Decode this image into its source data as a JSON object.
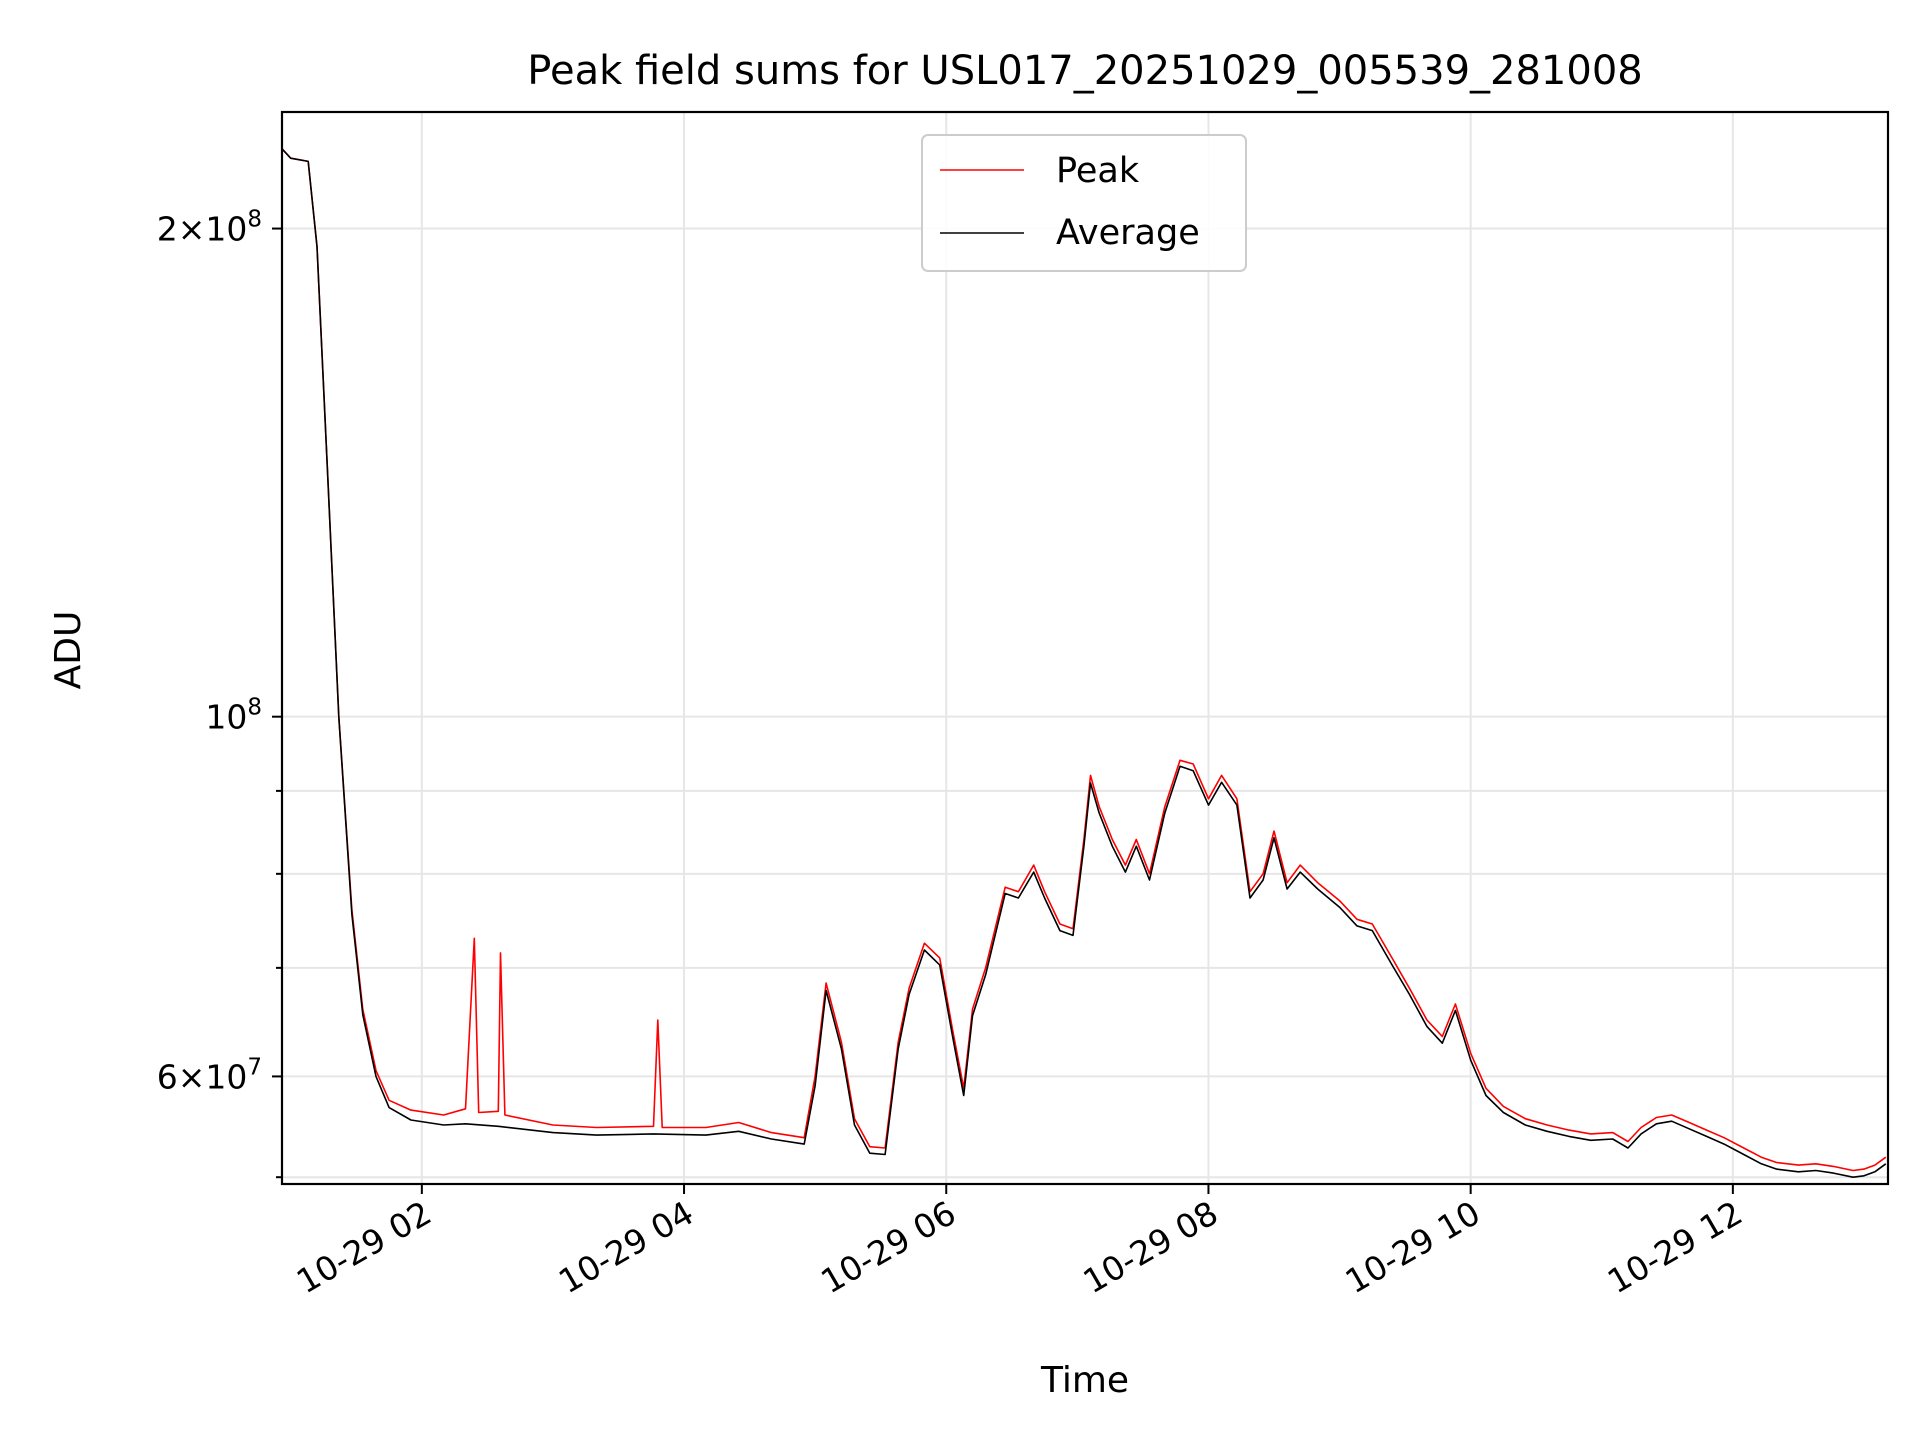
{
  "chart_data": {
    "type": "line",
    "title": "Peak field sums for USL017_20251029_005539_281008",
    "xlabel": "Time",
    "ylabel": "ADU",
    "xlim": [
      "2025-10-29 00:56",
      "2025-10-29 13:11"
    ],
    "ylim": [
      51500000,
      236000000
    ],
    "yscale": "log",
    "grid": true,
    "legend_position": "upper center",
    "x_ticks": [
      {
        "x": "2025-10-29 02:00",
        "label": "10-29 02"
      },
      {
        "x": "2025-10-29 04:00",
        "label": "10-29 04"
      },
      {
        "x": "2025-10-29 06:00",
        "label": "10-29 06"
      },
      {
        "x": "2025-10-29 08:00",
        "label": "10-29 08"
      },
      {
        "x": "2025-10-29 10:00",
        "label": "10-29 10"
      },
      {
        "x": "2025-10-29 12:00",
        "label": "10-29 12"
      }
    ],
    "y_major_ticks": [
      {
        "y": 60000000,
        "mant": "6",
        "exp": "7"
      },
      {
        "y": 100000000,
        "mant": "",
        "exp": "8"
      },
      {
        "y": 200000000,
        "mant": "2",
        "exp": "8"
      }
    ],
    "y_minor_ticks": [
      52000000,
      70000000,
      80000000,
      90000000
    ],
    "series": [
      {
        "name": "Peak",
        "color": "#ff0000",
        "points": [
          [
            "2025-10-29 00:56",
            224000000
          ],
          [
            "2025-10-29 01:00",
            221000000
          ],
          [
            "2025-10-29 01:08",
            220000000
          ],
          [
            "2025-10-29 01:12",
            195000000
          ],
          [
            "2025-10-29 01:17",
            140000000
          ],
          [
            "2025-10-29 01:22",
            100000000
          ],
          [
            "2025-10-29 01:28",
            76000000
          ],
          [
            "2025-10-29 01:33",
            66000000
          ],
          [
            "2025-10-29 01:39",
            60500000
          ],
          [
            "2025-10-29 01:45",
            58000000
          ],
          [
            "2025-10-29 01:55",
            57200000
          ],
          [
            "2025-10-29 02:10",
            56800000
          ],
          [
            "2025-10-29 02:20",
            57300000
          ],
          [
            "2025-10-29 02:24",
            73000000
          ],
          [
            "2025-10-29 02:26",
            57000000
          ],
          [
            "2025-10-29 02:35",
            57100000
          ],
          [
            "2025-10-29 02:36",
            71500000
          ],
          [
            "2025-10-29 02:38",
            56800000
          ],
          [
            "2025-10-29 03:00",
            56000000
          ],
          [
            "2025-10-29 03:20",
            55800000
          ],
          [
            "2025-10-29 03:46",
            55900000
          ],
          [
            "2025-10-29 03:48",
            65000000
          ],
          [
            "2025-10-29 03:50",
            55800000
          ],
          [
            "2025-10-29 04:10",
            55800000
          ],
          [
            "2025-10-29 04:25",
            56200000
          ],
          [
            "2025-10-29 04:40",
            55400000
          ],
          [
            "2025-10-29 04:55",
            55000000
          ],
          [
            "2025-10-29 05:00",
            60000000
          ],
          [
            "2025-10-29 05:05",
            68500000
          ],
          [
            "2025-10-29 05:12",
            63000000
          ],
          [
            "2025-10-29 05:18",
            56500000
          ],
          [
            "2025-10-29 05:25",
            54300000
          ],
          [
            "2025-10-29 05:32",
            54200000
          ],
          [
            "2025-10-29 05:38",
            63000000
          ],
          [
            "2025-10-29 05:43",
            68000000
          ],
          [
            "2025-10-29 05:50",
            72500000
          ],
          [
            "2025-10-29 05:57",
            71000000
          ],
          [
            "2025-10-29 06:03",
            64000000
          ],
          [
            "2025-10-29 06:08",
            59000000
          ],
          [
            "2025-10-29 06:12",
            66000000
          ],
          [
            "2025-10-29 06:18",
            70000000
          ],
          [
            "2025-10-29 06:27",
            78500000
          ],
          [
            "2025-10-29 06:33",
            78000000
          ],
          [
            "2025-10-29 06:40",
            81000000
          ],
          [
            "2025-10-29 06:45",
            78000000
          ],
          [
            "2025-10-29 06:52",
            74500000
          ],
          [
            "2025-10-29 06:58",
            74000000
          ],
          [
            "2025-10-29 07:03",
            84000000
          ],
          [
            "2025-10-29 07:06",
            92000000
          ],
          [
            "2025-10-29 07:10",
            88000000
          ],
          [
            "2025-10-29 07:16",
            84000000
          ],
          [
            "2025-10-29 07:22",
            81000000
          ],
          [
            "2025-10-29 07:27",
            84000000
          ],
          [
            "2025-10-29 07:33",
            80000000
          ],
          [
            "2025-10-29 07:40",
            88000000
          ],
          [
            "2025-10-29 07:47",
            94000000
          ],
          [
            "2025-10-29 07:53",
            93500000
          ],
          [
            "2025-10-29 08:00",
            89000000
          ],
          [
            "2025-10-29 08:06",
            92000000
          ],
          [
            "2025-10-29 08:13",
            89000000
          ],
          [
            "2025-10-29 08:19",
            78000000
          ],
          [
            "2025-10-29 08:25",
            80000000
          ],
          [
            "2025-10-29 08:30",
            85000000
          ],
          [
            "2025-10-29 08:36",
            79000000
          ],
          [
            "2025-10-29 08:42",
            81000000
          ],
          [
            "2025-10-29 08:50",
            79000000
          ],
          [
            "2025-10-29 09:00",
            77000000
          ],
          [
            "2025-10-29 09:08",
            75000000
          ],
          [
            "2025-10-29 09:15",
            74500000
          ],
          [
            "2025-10-29 09:24",
            71000000
          ],
          [
            "2025-10-29 09:32",
            68000000
          ],
          [
            "2025-10-29 09:40",
            65000000
          ],
          [
            "2025-10-29 09:47",
            63500000
          ],
          [
            "2025-10-29 09:53",
            66500000
          ],
          [
            "2025-10-29 10:00",
            62000000
          ],
          [
            "2025-10-29 10:07",
            59000000
          ],
          [
            "2025-10-29 10:15",
            57500000
          ],
          [
            "2025-10-29 10:25",
            56500000
          ],
          [
            "2025-10-29 10:35",
            56000000
          ],
          [
            "2025-10-29 10:45",
            55600000
          ],
          [
            "2025-10-29 10:55",
            55300000
          ],
          [
            "2025-10-29 11:05",
            55400000
          ],
          [
            "2025-10-29 11:12",
            54700000
          ],
          [
            "2025-10-29 11:18",
            55800000
          ],
          [
            "2025-10-29 11:25",
            56600000
          ],
          [
            "2025-10-29 11:32",
            56800000
          ],
          [
            "2025-10-29 11:40",
            56200000
          ],
          [
            "2025-10-29 11:48",
            55600000
          ],
          [
            "2025-10-29 11:56",
            55000000
          ],
          [
            "2025-10-29 12:05",
            54200000
          ],
          [
            "2025-10-29 12:13",
            53500000
          ],
          [
            "2025-10-29 12:20",
            53100000
          ],
          [
            "2025-10-29 12:30",
            52900000
          ],
          [
            "2025-10-29 12:38",
            53000000
          ],
          [
            "2025-10-29 12:46",
            52800000
          ],
          [
            "2025-10-29 12:55",
            52500000
          ],
          [
            "2025-10-29 13:00",
            52600000
          ],
          [
            "2025-10-29 13:05",
            52900000
          ],
          [
            "2025-10-29 13:10",
            53500000
          ]
        ]
      },
      {
        "name": "Average",
        "color": "#000000",
        "points": [
          [
            "2025-10-29 00:56",
            224000000
          ],
          [
            "2025-10-29 01:00",
            221000000
          ],
          [
            "2025-10-29 01:08",
            220000000
          ],
          [
            "2025-10-29 01:12",
            195000000
          ],
          [
            "2025-10-29 01:17",
            140000000
          ],
          [
            "2025-10-29 01:22",
            100000000
          ],
          [
            "2025-10-29 01:28",
            75500000
          ],
          [
            "2025-10-29 01:33",
            65500000
          ],
          [
            "2025-10-29 01:39",
            60000000
          ],
          [
            "2025-10-29 01:45",
            57400000
          ],
          [
            "2025-10-29 01:55",
            56400000
          ],
          [
            "2025-10-29 02:10",
            56000000
          ],
          [
            "2025-10-29 02:20",
            56100000
          ],
          [
            "2025-10-29 02:35",
            55900000
          ],
          [
            "2025-10-29 03:00",
            55400000
          ],
          [
            "2025-10-29 03:20",
            55200000
          ],
          [
            "2025-10-29 03:46",
            55300000
          ],
          [
            "2025-10-29 04:10",
            55200000
          ],
          [
            "2025-10-29 04:25",
            55500000
          ],
          [
            "2025-10-29 04:40",
            54900000
          ],
          [
            "2025-10-29 04:55",
            54500000
          ],
          [
            "2025-10-29 05:00",
            59200000
          ],
          [
            "2025-10-29 05:05",
            67800000
          ],
          [
            "2025-10-29 05:12",
            62400000
          ],
          [
            "2025-10-29 05:18",
            56000000
          ],
          [
            "2025-10-29 05:25",
            53800000
          ],
          [
            "2025-10-29 05:32",
            53700000
          ],
          [
            "2025-10-29 05:38",
            62400000
          ],
          [
            "2025-10-29 05:43",
            67400000
          ],
          [
            "2025-10-29 05:50",
            71800000
          ],
          [
            "2025-10-29 05:57",
            70300000
          ],
          [
            "2025-10-29 06:03",
            63400000
          ],
          [
            "2025-10-29 06:08",
            58400000
          ],
          [
            "2025-10-29 06:12",
            65400000
          ],
          [
            "2025-10-29 06:18",
            69300000
          ],
          [
            "2025-10-29 06:27",
            77800000
          ],
          [
            "2025-10-29 06:33",
            77300000
          ],
          [
            "2025-10-29 06:40",
            80200000
          ],
          [
            "2025-10-29 06:45",
            77300000
          ],
          [
            "2025-10-29 06:52",
            73800000
          ],
          [
            "2025-10-29 06:58",
            73300000
          ],
          [
            "2025-10-29 07:03",
            83200000
          ],
          [
            "2025-10-29 07:06",
            91000000
          ],
          [
            "2025-10-29 07:10",
            87200000
          ],
          [
            "2025-10-29 07:16",
            83200000
          ],
          [
            "2025-10-29 07:22",
            80200000
          ],
          [
            "2025-10-29 07:27",
            83200000
          ],
          [
            "2025-10-29 07:33",
            79300000
          ],
          [
            "2025-10-29 07:40",
            87200000
          ],
          [
            "2025-10-29 07:47",
            93200000
          ],
          [
            "2025-10-29 07:53",
            92600000
          ],
          [
            "2025-10-29 08:00",
            88200000
          ],
          [
            "2025-10-29 08:06",
            91100000
          ],
          [
            "2025-10-29 08:13",
            88200000
          ],
          [
            "2025-10-29 08:19",
            77300000
          ],
          [
            "2025-10-29 08:25",
            79300000
          ],
          [
            "2025-10-29 08:30",
            84200000
          ],
          [
            "2025-10-29 08:36",
            78300000
          ],
          [
            "2025-10-29 08:42",
            80200000
          ],
          [
            "2025-10-29 08:50",
            78300000
          ],
          [
            "2025-10-29 09:00",
            76300000
          ],
          [
            "2025-10-29 09:08",
            74300000
          ],
          [
            "2025-10-29 09:15",
            73800000
          ],
          [
            "2025-10-29 09:24",
            70300000
          ],
          [
            "2025-10-29 09:32",
            67400000
          ],
          [
            "2025-10-29 09:40",
            64400000
          ],
          [
            "2025-10-29 09:47",
            62900000
          ],
          [
            "2025-10-29 09:53",
            65900000
          ],
          [
            "2025-10-29 10:00",
            61400000
          ],
          [
            "2025-10-29 10:07",
            58400000
          ],
          [
            "2025-10-29 10:15",
            57000000
          ],
          [
            "2025-10-29 10:25",
            56000000
          ],
          [
            "2025-10-29 10:35",
            55500000
          ],
          [
            "2025-10-29 10:45",
            55100000
          ],
          [
            "2025-10-29 10:55",
            54800000
          ],
          [
            "2025-10-29 11:05",
            54900000
          ],
          [
            "2025-10-29 11:12",
            54200000
          ],
          [
            "2025-10-29 11:18",
            55300000
          ],
          [
            "2025-10-29 11:25",
            56100000
          ],
          [
            "2025-10-29 11:32",
            56300000
          ],
          [
            "2025-10-29 11:40",
            55700000
          ],
          [
            "2025-10-29 11:48",
            55100000
          ],
          [
            "2025-10-29 11:56",
            54500000
          ],
          [
            "2025-10-29 12:05",
            53700000
          ],
          [
            "2025-10-29 12:13",
            53000000
          ],
          [
            "2025-10-29 12:20",
            52600000
          ],
          [
            "2025-10-29 12:30",
            52400000
          ],
          [
            "2025-10-29 12:38",
            52500000
          ],
          [
            "2025-10-29 12:46",
            52300000
          ],
          [
            "2025-10-29 12:55",
            52000000
          ],
          [
            "2025-10-29 13:00",
            52100000
          ],
          [
            "2025-10-29 13:05",
            52400000
          ],
          [
            "2025-10-29 13:10",
            53000000
          ]
        ]
      }
    ]
  }
}
